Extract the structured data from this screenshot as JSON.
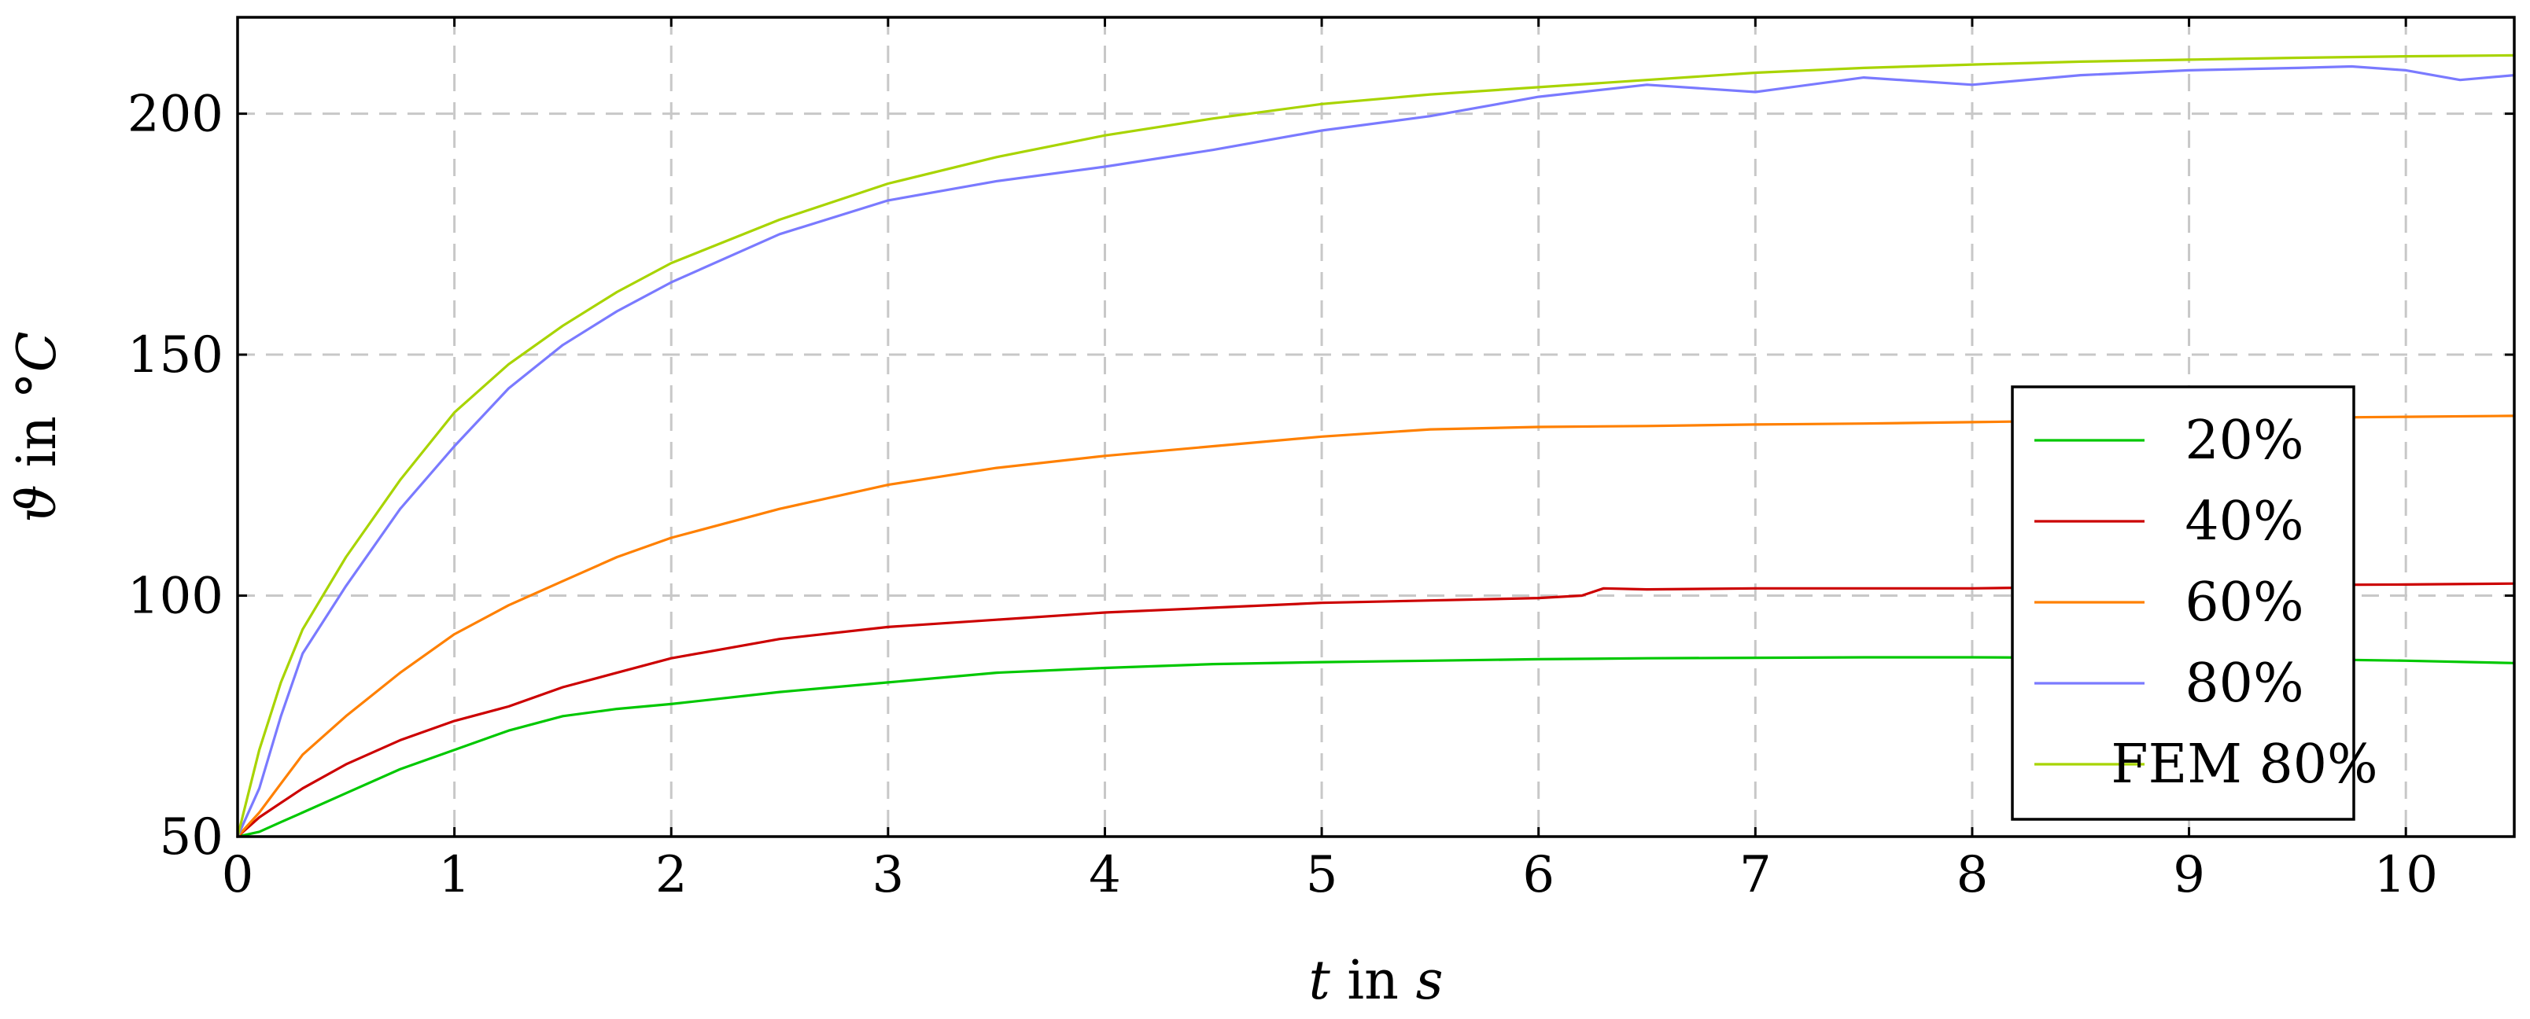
{
  "chart_data": {
    "type": "line",
    "title": "",
    "xlabel": {
      "var": "t",
      "text": " in ",
      "unit": "s"
    },
    "ylabel": {
      "var": "ϑ",
      "text": " in ",
      "unit": "°C"
    },
    "xlim": [
      0,
      10.5
    ],
    "ylim": [
      50,
      220
    ],
    "xticks": [
      0,
      1,
      2,
      3,
      4,
      5,
      6,
      7,
      8,
      9,
      10
    ],
    "yticks": [
      50,
      100,
      150,
      200
    ],
    "grid": true,
    "legend_position": "right",
    "series": [
      {
        "name": "20%",
        "color": "#00c800",
        "x": [
          0,
          0.1,
          0.2,
          0.3,
          0.5,
          0.75,
          1,
          1.25,
          1.5,
          1.75,
          2,
          2.5,
          3,
          3.5,
          4,
          4.5,
          5,
          5.5,
          6,
          6.5,
          7,
          7.5,
          8,
          8.5,
          9,
          9.5,
          10,
          10.5
        ],
        "y": [
          50,
          51,
          53,
          55,
          59,
          64,
          68,
          72,
          75,
          76.5,
          77.5,
          80,
          82,
          84,
          85,
          85.8,
          86.2,
          86.5,
          86.8,
          87,
          87.1,
          87.2,
          87.2,
          87.1,
          87.0,
          86.8,
          86.5,
          86
        ]
      },
      {
        "name": "40%",
        "color": "#cc0000",
        "x": [
          0,
          0.1,
          0.2,
          0.3,
          0.5,
          0.75,
          1,
          1.25,
          1.5,
          1.75,
          2,
          2.5,
          3,
          3.5,
          4,
          4.5,
          5,
          5.5,
          6,
          6.2,
          6.3,
          6.5,
          7,
          7.5,
          8,
          8.5,
          9,
          9.5,
          10,
          10.5
        ],
        "y": [
          50,
          54,
          57,
          60,
          65,
          70,
          74,
          77,
          81,
          84,
          87,
          91,
          93.5,
          95,
          96.5,
          97.5,
          98.5,
          99,
          99.5,
          100,
          101.5,
          101.3,
          101.5,
          101.5,
          101.5,
          101.8,
          102,
          102.2,
          102.3,
          102.5
        ]
      },
      {
        "name": "60%",
        "color": "#ff8000",
        "x": [
          0,
          0.1,
          0.2,
          0.3,
          0.5,
          0.75,
          1,
          1.25,
          1.5,
          1.75,
          2,
          2.5,
          3,
          3.5,
          4,
          4.5,
          5,
          5.5,
          6,
          6.5,
          7,
          7.5,
          8,
          8.5,
          9,
          9.5,
          10,
          10.5
        ],
        "y": [
          50,
          55,
          61,
          67,
          75,
          84,
          92,
          98,
          103,
          108,
          112,
          118,
          123,
          126.5,
          129,
          131,
          133,
          134.5,
          135,
          135.2,
          135.5,
          135.7,
          136,
          136.3,
          136.6,
          136.9,
          137.1,
          137.3
        ]
      },
      {
        "name": "80%",
        "color": "#7a7aff",
        "x": [
          0,
          0.1,
          0.2,
          0.3,
          0.5,
          0.75,
          1,
          1.25,
          1.5,
          1.75,
          2,
          2.5,
          3,
          3.5,
          4,
          4.5,
          5,
          5.5,
          6,
          6.5,
          7,
          7.5,
          8,
          8.5,
          9,
          9.5,
          9.75,
          10,
          10.25,
          10.5
        ],
        "y": [
          50,
          60,
          75,
          88,
          102,
          118,
          131,
          143,
          152,
          159,
          165,
          175,
          182,
          186,
          189,
          192.5,
          196.5,
          199.5,
          203.5,
          206,
          204.5,
          207.5,
          206,
          208,
          209,
          209.5,
          209.8,
          209,
          207,
          208
        ]
      },
      {
        "name": "FEM 80%",
        "color": "#a8d400",
        "x": [
          0,
          0.1,
          0.2,
          0.3,
          0.5,
          0.75,
          1,
          1.25,
          1.5,
          1.75,
          2,
          2.5,
          3,
          3.5,
          4,
          4.5,
          5,
          5.5,
          6,
          6.5,
          7,
          7.5,
          8,
          8.5,
          9,
          9.5,
          10,
          10.5
        ],
        "y": [
          50,
          68,
          82,
          93,
          108,
          124,
          138,
          148,
          156,
          163,
          169,
          178,
          185.5,
          191,
          195.5,
          199,
          202,
          204,
          205.5,
          207,
          208.5,
          209.5,
          210.2,
          210.8,
          211.2,
          211.6,
          211.9,
          212.1
        ]
      }
    ]
  }
}
